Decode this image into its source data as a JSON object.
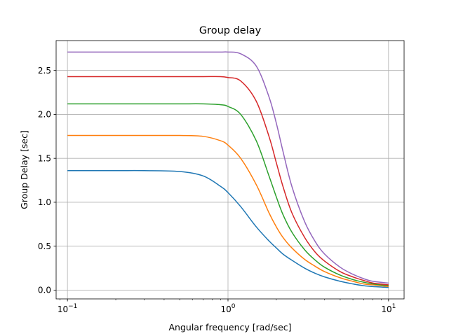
{
  "chart_data": {
    "type": "line",
    "title": "Group delay",
    "xlabel": "Angular frequency [rad/sec]",
    "ylabel": "Group Delay [sec]",
    "xscale": "log",
    "xlim": [
      0.085,
      12.5
    ],
    "ylim": [
      -0.1,
      2.84
    ],
    "grid": true,
    "legend": "none",
    "x_ticks": [
      {
        "value": 0.1,
        "base": "10",
        "exp": "−1"
      },
      {
        "value": 1,
        "base": "10",
        "exp": "0"
      },
      {
        "value": 10,
        "base": "10",
        "exp": "1"
      }
    ],
    "y_ticks": [
      {
        "value": 0.0,
        "label": "0.0"
      },
      {
        "value": 0.5,
        "label": "0.5"
      },
      {
        "value": 1.0,
        "label": "1.0"
      },
      {
        "value": 1.5,
        "label": "1.5"
      },
      {
        "value": 2.0,
        "label": "2.0"
      },
      {
        "value": 2.5,
        "label": "2.5"
      }
    ],
    "x": [
      0.1,
      0.2,
      0.3,
      0.5,
      0.7,
      0.9,
      1.0,
      1.2,
      1.5,
      1.8,
      2.0,
      2.2,
      2.5,
      3.0,
      3.5,
      4.0,
      5.0,
      6.0,
      7.0,
      8.0,
      10.0
    ],
    "series": [
      {
        "color": "#1f77b4",
        "values": [
          1.36,
          1.36,
          1.36,
          1.35,
          1.3,
          1.18,
          1.11,
          0.95,
          0.72,
          0.56,
          0.48,
          0.41,
          0.34,
          0.25,
          0.19,
          0.15,
          0.1,
          0.07,
          0.05,
          0.04,
          0.03
        ]
      },
      {
        "color": "#ff7f0e",
        "values": [
          1.76,
          1.76,
          1.76,
          1.76,
          1.75,
          1.7,
          1.65,
          1.5,
          1.2,
          0.88,
          0.72,
          0.6,
          0.48,
          0.35,
          0.27,
          0.21,
          0.14,
          0.1,
          0.07,
          0.06,
          0.04
        ]
      },
      {
        "color": "#2ca02c",
        "values": [
          2.12,
          2.12,
          2.12,
          2.12,
          2.12,
          2.11,
          2.09,
          2.0,
          1.7,
          1.3,
          1.06,
          0.86,
          0.66,
          0.46,
          0.34,
          0.26,
          0.17,
          0.12,
          0.09,
          0.07,
          0.05
        ]
      },
      {
        "color": "#d62728",
        "values": [
          2.43,
          2.43,
          2.43,
          2.43,
          2.43,
          2.43,
          2.42,
          2.38,
          2.15,
          1.75,
          1.45,
          1.18,
          0.88,
          0.6,
          0.43,
          0.33,
          0.21,
          0.15,
          0.11,
          0.08,
          0.06
        ]
      },
      {
        "color": "#9467bd",
        "values": [
          2.71,
          2.71,
          2.71,
          2.71,
          2.71,
          2.71,
          2.71,
          2.69,
          2.55,
          2.2,
          1.9,
          1.58,
          1.18,
          0.78,
          0.55,
          0.41,
          0.26,
          0.18,
          0.13,
          0.1,
          0.08
        ]
      }
    ]
  }
}
